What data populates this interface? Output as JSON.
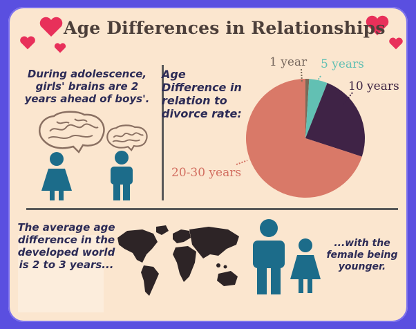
{
  "header": {
    "title": "Age Differences in Relationships"
  },
  "adolescence": {
    "text": "During adolescence, girls' brains are 2 years ahead of boys'."
  },
  "divorce": {
    "heading": "Age Difference in relation to divorce rate:"
  },
  "chart_data": {
    "type": "pie",
    "categories": [
      "1 year",
      "5 years",
      "10 years",
      "20-30 years"
    ],
    "values": [
      1,
      5,
      24,
      70
    ],
    "colors": [
      "#7a6a58",
      "#62c0b3",
      "#3f2346",
      "#d97968"
    ]
  },
  "average": {
    "text": "The average age difference in the developed world is 2 to 3 years...",
    "continuation": "...with the female being younger."
  },
  "colors": {
    "accent_heart": "#e8305a",
    "person": "#1c6c8a",
    "background": "#fbe6cf"
  }
}
